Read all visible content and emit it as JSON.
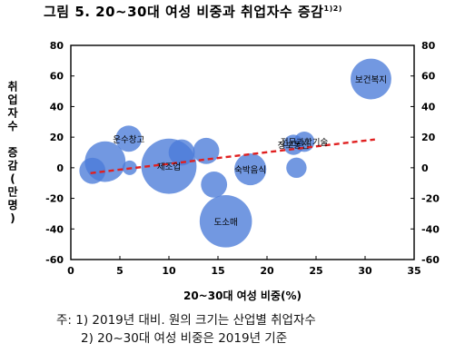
{
  "title": {
    "main": "그림 5. 20~30대 여성 비중과 취업자수 증감",
    "superscript": "1)2)"
  },
  "chart_data": {
    "type": "scatter",
    "xlabel": "20~30대 여성 비중(%)",
    "ylabel": "취업자수 증감(만명)",
    "xlim": [
      0,
      35
    ],
    "ylim": [
      -60,
      80
    ],
    "x_ticks": [
      "0",
      "5",
      "10",
      "15",
      "20",
      "25",
      "30",
      "35"
    ],
    "y_ticks_left": [
      "80",
      "60",
      "40",
      "20",
      "0",
      "-20",
      "-40",
      "-60"
    ],
    "y_ticks_right": [
      "80",
      "60",
      "40",
      "20",
      "0",
      "-20",
      "-40",
      "-60"
    ],
    "bubble_color": "#4a7bd8",
    "trend_color": "#e02020",
    "points": [
      {
        "label": "",
        "x": 2.2,
        "y": -2,
        "size": 9
      },
      {
        "label": "",
        "x": 3.5,
        "y": 4,
        "size": 14
      },
      {
        "label": "운수창고",
        "x": 5.9,
        "y": 19,
        "size": 9
      },
      {
        "label": "",
        "x": 6.0,
        "y": 0,
        "size": 5
      },
      {
        "label": "제조업",
        "x": 10.0,
        "y": 1,
        "size": 19
      },
      {
        "label": "",
        "x": 11.3,
        "y": 10,
        "size": 9
      },
      {
        "label": "",
        "x": 13.8,
        "y": 11,
        "size": 9
      },
      {
        "label": "",
        "x": 14.6,
        "y": -11,
        "size": 9
      },
      {
        "label": "숙박음식",
        "x": 18.3,
        "y": -1,
        "size": 11
      },
      {
        "label": "도소매",
        "x": 15.8,
        "y": -35,
        "size": 18
      },
      {
        "label": "정보통신",
        "x": 22.7,
        "y": 15,
        "size": 7
      },
      {
        "label": "전문과학기술",
        "x": 23.8,
        "y": 17,
        "size": 7
      },
      {
        "label": "",
        "x": 23.0,
        "y": 0,
        "size": 7
      },
      {
        "label": "보건복지",
        "x": 30.6,
        "y": 58,
        "size": 14
      }
    ],
    "trend": {
      "x": [
        2,
        31
      ],
      "y": [
        -3.5,
        18.5
      ]
    }
  },
  "notes": [
    "주: 1) 2019년 대비. 원의 크기는 산업별 취업자수",
    "2) 20~30대 여성 비중은 2019년 기준"
  ]
}
